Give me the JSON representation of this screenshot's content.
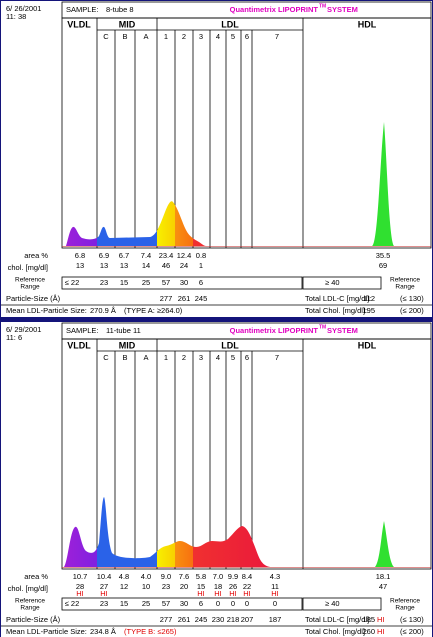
{
  "panels": [
    {
      "date": "6/ 26/2001",
      "time": "11: 38",
      "sample_label": "SAMPLE:",
      "sample": "8-tube  8",
      "brand": "Quantimetrix LIPOPRINT",
      "brand_tm": "TM",
      "brand_suffix": "SYSTEM",
      "fractions": [
        "VLDL",
        "MID",
        "LDL",
        "HDL"
      ],
      "subfractions": [
        "C",
        "B",
        "A",
        "1",
        "2",
        "3",
        "4",
        "5",
        "6",
        "7"
      ],
      "row_labels": {
        "area": "area %",
        "chol": "chol. [mg/dl]",
        "reference": "Reference Range",
        "particle_size": "Particle-Size (Å)"
      },
      "area": [
        "6.8",
        "6.9",
        "6.7",
        "7.4",
        "23.4",
        "12.4",
        "0.8",
        null,
        null,
        null,
        null
      ],
      "area_hdl": "35.5",
      "chol": [
        "13",
        "13",
        "13",
        "14",
        "46",
        "24",
        "1",
        null,
        null,
        null,
        null
      ],
      "chol_hdl": "69",
      "chol_flags": [
        null,
        null,
        null,
        null,
        null,
        null,
        null,
        null,
        null,
        null,
        null
      ],
      "reference": [
        "≤ 22",
        "23",
        "15",
        "25",
        "57",
        "30",
        "6",
        null,
        null,
        null,
        null
      ],
      "reference_hdl": "≥ 40",
      "particle_size": [
        "277",
        "261",
        "245",
        null,
        null,
        null,
        null
      ],
      "mean_label": "Mean LDL-Particle Size:",
      "mean_value": "270.9 Å",
      "mean_type": "(TYPE A: ≥264.0)",
      "mean_type_flag": false,
      "total_ldl_label": "Total LDL-C [mg/dl]:",
      "total_ldl": "112",
      "total_ldl_flag": null,
      "total_ldl_range": "(≤ 130)",
      "total_chol_label": "Total Chol. [mg/dl]:",
      "total_chol": "195",
      "total_chol_flag": null,
      "total_chol_range": "(≤ 200)"
    },
    {
      "date": "6/ 29/2001",
      "time": "11: 6",
      "sample_label": "SAMPLE:",
      "sample": "11-tube  11",
      "brand": "Quantimetrix LIPOPRINT",
      "brand_tm": "TM",
      "brand_suffix": "SYSTEM",
      "fractions": [
        "VLDL",
        "MID",
        "LDL",
        "HDL"
      ],
      "subfractions": [
        "C",
        "B",
        "A",
        "1",
        "2",
        "3",
        "4",
        "5",
        "6",
        "7"
      ],
      "row_labels": {
        "area": "area %",
        "chol": "chol. [mg/dl]",
        "reference": "Reference Range",
        "particle_size": "Particle-Size (Å)"
      },
      "area": [
        "10.7",
        "10.4",
        "4.8",
        "4.0",
        "9.0",
        "7.6",
        "5.8",
        "7.0",
        "9.9",
        "8.4",
        "4.3"
      ],
      "area_hdl": "18.1",
      "chol": [
        "28",
        "27",
        "12",
        "10",
        "23",
        "20",
        "15",
        "18",
        "26",
        "22",
        "11"
      ],
      "chol_hdl": "47",
      "chol_flags": [
        "HI",
        "HI",
        null,
        null,
        null,
        null,
        "HI",
        "HI",
        "HI",
        "HI",
        "HI"
      ],
      "reference": [
        "≤ 22",
        "23",
        "15",
        "25",
        "57",
        "30",
        "6",
        "0",
        "0",
        "0",
        "0"
      ],
      "reference_hdl": "≥ 40",
      "particle_size": [
        "277",
        "261",
        "245",
        "230",
        "218",
        "207",
        "187"
      ],
      "mean_label": "Mean LDL-Particle Size:",
      "mean_value": "234.8 Å",
      "mean_type": "(TYPE B: ≤265)",
      "mean_type_flag": true,
      "total_ldl_label": "Total LDL-C [mg/dl]:",
      "total_ldl": "185",
      "total_ldl_flag": "HI",
      "total_ldl_range": "(≤ 130)",
      "total_chol_label": "Total Chol. [mg/dl]:",
      "total_chol": "260",
      "total_chol_flag": "HI",
      "total_chol_range": "(≤ 200)"
    }
  ]
}
